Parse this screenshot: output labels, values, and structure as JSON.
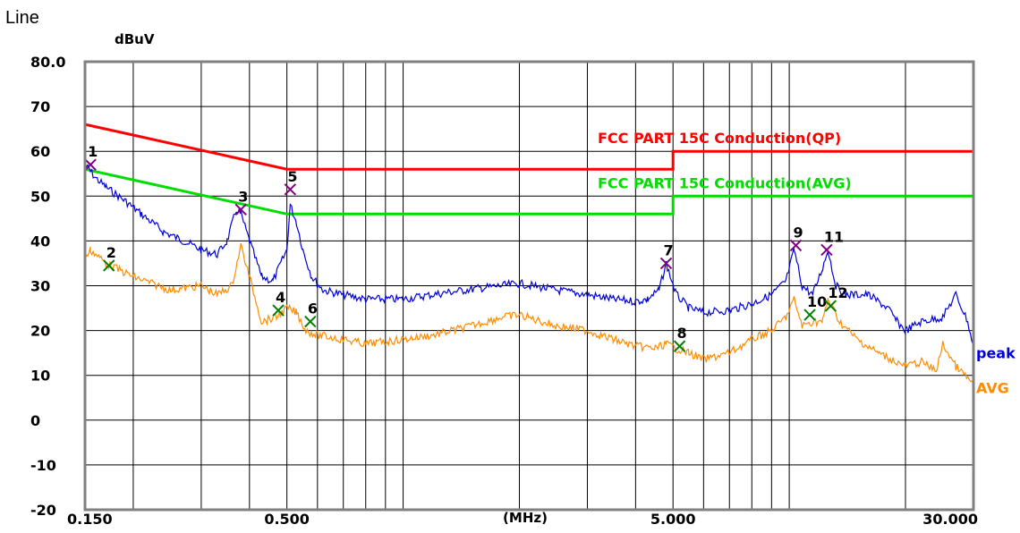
{
  "page_title": "Line",
  "chart_data": {
    "type": "line",
    "title": "",
    "ylabel": "dBuV",
    "xlabel": "(MHz)",
    "x_scale": "log",
    "xlim": [
      0.15,
      30
    ],
    "ylim": [
      -20,
      80
    ],
    "grid": true,
    "y_ticks": [
      {
        "value": 80,
        "label": "80.0"
      },
      {
        "value": 70,
        "label": "70"
      },
      {
        "value": 60,
        "label": "60"
      },
      {
        "value": 50,
        "label": "50"
      },
      {
        "value": 40,
        "label": "40"
      },
      {
        "value": 30,
        "label": "30"
      },
      {
        "value": 20,
        "label": "20"
      },
      {
        "value": 10,
        "label": "10"
      },
      {
        "value": 0,
        "label": "0"
      },
      {
        "value": -10,
        "label": "-10"
      },
      {
        "value": -20,
        "label": "-20"
      }
    ],
    "x_ticks": [
      {
        "value": 0.15,
        "label": "0.150"
      },
      {
        "value": 0.5,
        "label": "0.500"
      },
      {
        "value": 5,
        "label": "5.000"
      },
      {
        "value": 30,
        "label": "30.000"
      }
    ],
    "limit_lines": [
      {
        "name": "FCC PART 15C  Conduction(QP)",
        "color": "#ff0000",
        "x": [
          0.15,
          0.5,
          0.5,
          5,
          5,
          30
        ],
        "y": [
          66,
          56,
          56,
          56,
          60,
          60
        ]
      },
      {
        "name": "FCC PART 15C  Conduction(AVG)",
        "color": "#00dd00",
        "x": [
          0.15,
          0.5,
          0.5,
          5,
          5,
          30
        ],
        "y": [
          56,
          46,
          46,
          46,
          50,
          50
        ]
      }
    ],
    "series": [
      {
        "name": "peak",
        "color": "#0000dd",
        "x": [
          0.15,
          0.155,
          0.16,
          0.17,
          0.19,
          0.21,
          0.24,
          0.27,
          0.3,
          0.33,
          0.35,
          0.37,
          0.38,
          0.4,
          0.43,
          0.46,
          0.5,
          0.51,
          0.53,
          0.55,
          0.58,
          0.62,
          0.7,
          0.8,
          1.0,
          1.3,
          1.6,
          2.0,
          2.5,
          3.0,
          3.5,
          4.0,
          4.3,
          4.6,
          4.8,
          5.1,
          5.5,
          6.0,
          7.0,
          8.0,
          9.0,
          9.8,
          10.3,
          10.8,
          11.5,
          12.2,
          12.6,
          13.2,
          14.0,
          16.0,
          18.0,
          19.0,
          20.0,
          22.0,
          25.0,
          27.0,
          29.0,
          30.0
        ],
        "y": [
          57,
          55.5,
          54,
          52,
          49,
          46,
          42,
          40,
          38,
          37,
          40,
          47,
          46,
          40,
          32,
          31,
          38,
          48,
          44,
          38,
          32,
          29,
          28,
          27,
          27,
          28.5,
          29.5,
          30.5,
          29,
          28,
          27,
          26.5,
          27,
          29,
          35,
          28,
          25,
          24,
          24.5,
          26,
          28,
          31,
          38,
          30,
          28,
          34,
          38,
          30,
          28,
          28,
          25,
          22,
          20,
          22,
          23,
          28,
          22,
          16
        ]
      },
      {
        "name": "AVG",
        "color": "#ff8c00",
        "x": [
          0.15,
          0.155,
          0.165,
          0.17,
          0.2,
          0.25,
          0.3,
          0.33,
          0.36,
          0.38,
          0.4,
          0.43,
          0.47,
          0.5,
          0.53,
          0.56,
          0.6,
          0.7,
          0.8,
          1.0,
          1.2,
          1.5,
          1.8,
          2.0,
          2.5,
          3.0,
          3.5,
          4.0,
          4.5,
          4.8,
          5.1,
          5.5,
          6.0,
          7.0,
          8.0,
          9.0,
          9.8,
          10.3,
          10.8,
          11.5,
          12.2,
          12.6,
          13.5,
          15.0,
          17.0,
          20.0,
          22.0,
          24.0,
          25.0,
          27.0,
          30.0
        ],
        "y": [
          36,
          38,
          36,
          35,
          32,
          29,
          30,
          28,
          30,
          39,
          32,
          22,
          23,
          25,
          24,
          20,
          19,
          18,
          17,
          18,
          19,
          21,
          23,
          23.5,
          21,
          20,
          18,
          16.5,
          16,
          17,
          16,
          15,
          13.5,
          15,
          18,
          20,
          23,
          27,
          21,
          22,
          22,
          27,
          22,
          18,
          15,
          12,
          13,
          11,
          17,
          12,
          8
        ]
      }
    ],
    "markers": [
      {
        "label": "1",
        "x": 0.155,
        "y": 57.0,
        "type": "peak"
      },
      {
        "label": "2",
        "x": 0.173,
        "y": 34.5,
        "type": "avg"
      },
      {
        "label": "3",
        "x": 0.38,
        "y": 47.0,
        "type": "peak"
      },
      {
        "label": "4",
        "x": 0.475,
        "y": 24.5,
        "type": "avg"
      },
      {
        "label": "5",
        "x": 0.51,
        "y": 51.5,
        "type": "peak"
      },
      {
        "label": "6",
        "x": 0.575,
        "y": 22.0,
        "type": "avg"
      },
      {
        "label": "7",
        "x": 4.8,
        "y": 35.0,
        "type": "peak"
      },
      {
        "label": "8",
        "x": 5.2,
        "y": 16.5,
        "type": "avg"
      },
      {
        "label": "9",
        "x": 10.4,
        "y": 39.0,
        "type": "peak"
      },
      {
        "label": "10",
        "x": 11.3,
        "y": 23.5,
        "type": "avg"
      },
      {
        "label": "11",
        "x": 12.5,
        "y": 38.0,
        "type": "peak"
      },
      {
        "label": "12",
        "x": 12.8,
        "y": 25.5,
        "type": "avg"
      }
    ]
  },
  "colors": {
    "peak_marker": "#800080",
    "avg_marker": "#008000",
    "grid": "#000000",
    "frame": "#808080"
  }
}
